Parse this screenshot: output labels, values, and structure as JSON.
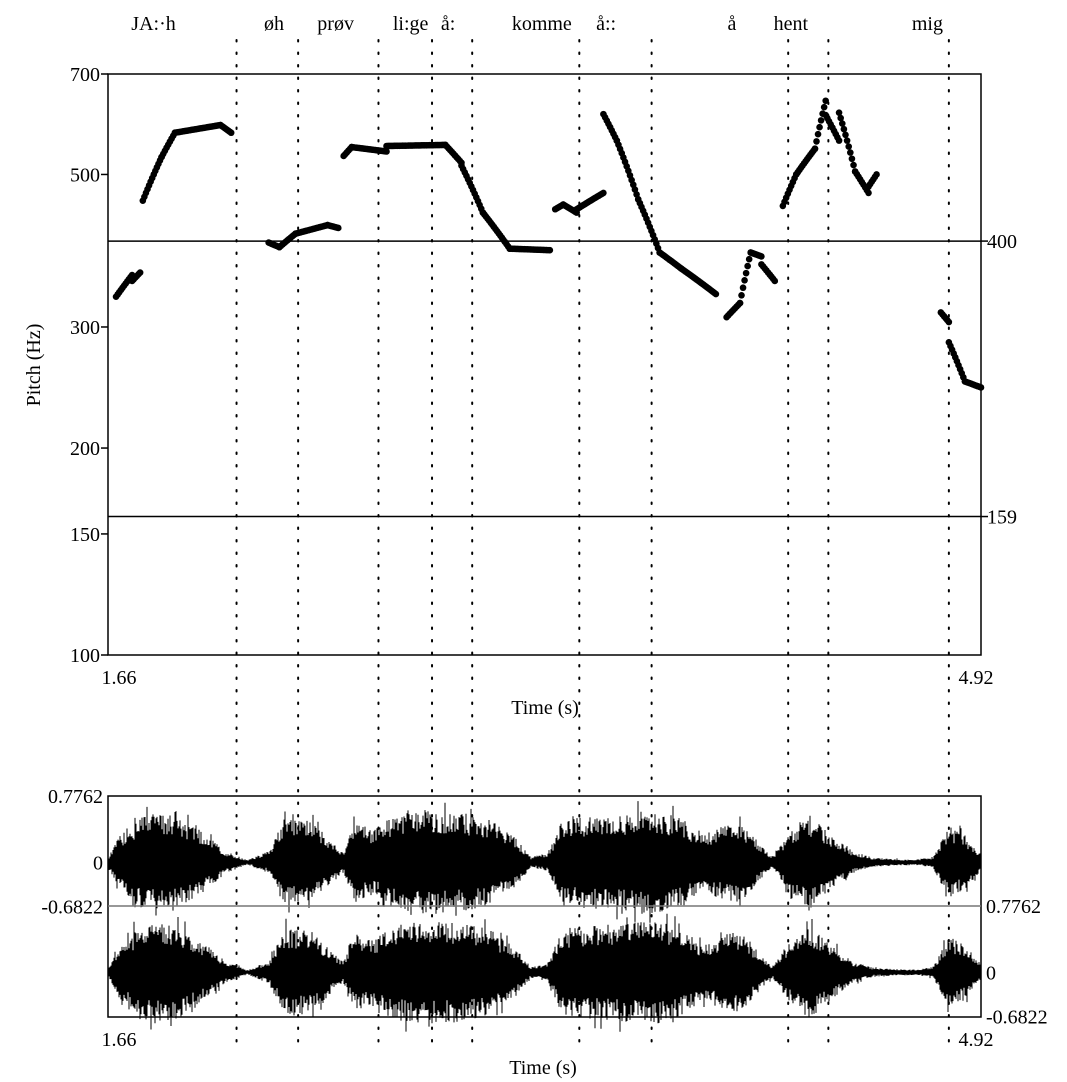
{
  "chart_data": {
    "type": "scatter",
    "words": [
      {
        "label": "JA:·h",
        "t": 1.83
      },
      {
        "label": "øh",
        "t": 2.28
      },
      {
        "label": "prøv",
        "t": 2.51
      },
      {
        "label": "li:ge",
        "t": 2.79
      },
      {
        "label": "å:",
        "t": 2.93
      },
      {
        "label": "komme",
        "t": 3.28
      },
      {
        "label": "å::",
        "t": 3.52
      },
      {
        "label": "å",
        "t": 3.99
      },
      {
        "label": "hent",
        "t": 4.21
      },
      {
        "label": "mig",
        "t": 4.72
      }
    ],
    "boundaries": [
      2.14,
      2.37,
      2.67,
      2.87,
      3.02,
      3.42,
      3.69,
      4.2,
      4.35,
      4.8
    ],
    "pitch": {
      "ylabel": "Pitch (Hz)",
      "xlabel": "Time (s)",
      "xlim": [
        1.66,
        4.92
      ],
      "xtick_labels": [
        "1.66",
        "4.92"
      ],
      "ylim": [
        100,
        700
      ],
      "yscale": "log",
      "yticks": [
        100,
        150,
        200,
        300,
        500,
        700
      ],
      "ytick_labels": [
        "100",
        "150",
        "200",
        "300",
        "500",
        "700"
      ],
      "reference_lines": [
        {
          "value": 400,
          "label": "400"
        },
        {
          "value": 159,
          "label": "159"
        }
      ],
      "segments": [
        {
          "t": [
            1.69,
            1.75
          ],
          "hz": [
            332,
            357
          ]
        },
        {
          "t": [
            1.75,
            1.78
          ],
          "hz": [
            350,
            360
          ]
        },
        {
          "t": [
            1.79,
            1.86
          ],
          "hz": [
            458,
            530
          ]
        },
        {
          "t": [
            1.86,
            1.91
          ],
          "hz": [
            530,
            575
          ]
        },
        {
          "t": [
            1.91,
            2.08
          ],
          "hz": [
            575,
            590
          ]
        },
        {
          "t": [
            2.08,
            2.12
          ],
          "hz": [
            590,
            575
          ]
        },
        {
          "t": [
            2.26,
            2.3
          ],
          "hz": [
            398,
            392
          ]
        },
        {
          "t": [
            2.3,
            2.36
          ],
          "hz": [
            392,
            410
          ]
        },
        {
          "t": [
            2.36,
            2.48
          ],
          "hz": [
            410,
            422
          ]
        },
        {
          "t": [
            2.48,
            2.52
          ],
          "hz": [
            422,
            418
          ]
        },
        {
          "t": [
            2.54,
            2.57
          ],
          "hz": [
            532,
            548
          ]
        },
        {
          "t": [
            2.57,
            2.7
          ],
          "hz": [
            548,
            540
          ]
        },
        {
          "t": [
            2.7,
            2.92
          ],
          "hz": [
            550,
            552
          ]
        },
        {
          "t": [
            2.92,
            2.98
          ],
          "hz": [
            552,
            520
          ]
        },
        {
          "t": [
            2.98,
            3.06
          ],
          "hz": [
            515,
            440
          ]
        },
        {
          "t": [
            3.06,
            3.16
          ],
          "hz": [
            440,
            390
          ]
        },
        {
          "t": [
            3.16,
            3.31
          ],
          "hz": [
            390,
            388
          ]
        },
        {
          "t": [
            3.33,
            3.36
          ],
          "hz": [
            445,
            452
          ]
        },
        {
          "t": [
            3.36,
            3.41
          ],
          "hz": [
            452,
            440
          ]
        },
        {
          "t": [
            3.41,
            3.51
          ],
          "hz": [
            445,
            470
          ]
        },
        {
          "t": [
            3.51,
            3.56
          ],
          "hz": [
            612,
            560
          ]
        },
        {
          "t": [
            3.56,
            3.64
          ],
          "hz": [
            560,
            460
          ]
        },
        {
          "t": [
            3.64,
            3.72
          ],
          "hz": [
            460,
            385
          ]
        },
        {
          "t": [
            3.72,
            3.8
          ],
          "hz": [
            385,
            365
          ]
        },
        {
          "t": [
            3.8,
            3.93
          ],
          "hz": [
            365,
            335
          ]
        },
        {
          "t": [
            3.97,
            4.02
          ],
          "hz": [
            310,
            325
          ]
        },
        {
          "t": [
            4.02,
            4.06
          ],
          "hz": [
            325,
            385
          ]
        },
        {
          "t": [
            4.06,
            4.1
          ],
          "hz": [
            385,
            380
          ]
        },
        {
          "t": [
            4.1,
            4.15
          ],
          "hz": [
            370,
            350
          ]
        },
        {
          "t": [
            4.18,
            4.23
          ],
          "hz": [
            450,
            500
          ]
        },
        {
          "t": [
            4.23,
            4.3
          ],
          "hz": [
            500,
            545
          ]
        },
        {
          "t": [
            4.3,
            4.34
          ],
          "hz": [
            545,
            640
          ]
        },
        {
          "t": [
            4.34,
            4.39
          ],
          "hz": [
            610,
            560
          ]
        },
        {
          "t": [
            4.39,
            4.45
          ],
          "hz": [
            615,
            505
          ]
        },
        {
          "t": [
            4.45,
            4.5
          ],
          "hz": [
            505,
            470
          ]
        },
        {
          "t": [
            4.5,
            4.53
          ],
          "hz": [
            480,
            500
          ]
        },
        {
          "t": [
            4.77,
            4.8
          ],
          "hz": [
            315,
            305
          ]
        },
        {
          "t": [
            4.8,
            4.86
          ],
          "hz": [
            285,
            250
          ]
        },
        {
          "t": [
            4.86,
            4.92
          ],
          "hz": [
            250,
            245
          ]
        }
      ]
    },
    "waveform": {
      "xlabel": "Time (s)",
      "xtick_labels": [
        "1.66",
        "4.92"
      ],
      "channels": [
        {
          "ymax": "0.7762",
          "zero": "0",
          "ymin": "-0.6822",
          "label_side": "left"
        },
        {
          "ymax": "0.7762",
          "zero": "0",
          "ymin": "-0.6822",
          "label_side": "right"
        }
      ],
      "envelope": [
        {
          "t": 1.66,
          "a": 0.08
        },
        {
          "t": 1.7,
          "a": 0.45
        },
        {
          "t": 1.78,
          "a": 0.85
        },
        {
          "t": 1.9,
          "a": 0.9
        },
        {
          "t": 2.0,
          "a": 0.6
        },
        {
          "t": 2.1,
          "a": 0.2
        },
        {
          "t": 2.18,
          "a": 0.04
        },
        {
          "t": 2.26,
          "a": 0.2
        },
        {
          "t": 2.32,
          "a": 0.8
        },
        {
          "t": 2.42,
          "a": 0.75
        },
        {
          "t": 2.5,
          "a": 0.35
        },
        {
          "t": 2.54,
          "a": 0.2
        },
        {
          "t": 2.58,
          "a": 0.7
        },
        {
          "t": 2.66,
          "a": 0.6
        },
        {
          "t": 2.72,
          "a": 0.85
        },
        {
          "t": 2.84,
          "a": 0.95
        },
        {
          "t": 2.96,
          "a": 0.9
        },
        {
          "t": 3.08,
          "a": 0.8
        },
        {
          "t": 3.18,
          "a": 0.45
        },
        {
          "t": 3.24,
          "a": 0.1
        },
        {
          "t": 3.3,
          "a": 0.15
        },
        {
          "t": 3.36,
          "a": 0.8
        },
        {
          "t": 3.48,
          "a": 0.85
        },
        {
          "t": 3.6,
          "a": 0.9
        },
        {
          "t": 3.7,
          "a": 0.95
        },
        {
          "t": 3.8,
          "a": 0.8
        },
        {
          "t": 3.88,
          "a": 0.5
        },
        {
          "t": 3.94,
          "a": 0.65
        },
        {
          "t": 4.02,
          "a": 0.75
        },
        {
          "t": 4.1,
          "a": 0.3
        },
        {
          "t": 4.14,
          "a": 0.1
        },
        {
          "t": 4.2,
          "a": 0.5
        },
        {
          "t": 4.28,
          "a": 0.85
        },
        {
          "t": 4.36,
          "a": 0.5
        },
        {
          "t": 4.44,
          "a": 0.2
        },
        {
          "t": 4.52,
          "a": 0.08
        },
        {
          "t": 4.6,
          "a": 0.06
        },
        {
          "t": 4.68,
          "a": 0.05
        },
        {
          "t": 4.74,
          "a": 0.1
        },
        {
          "t": 4.8,
          "a": 0.65
        },
        {
          "t": 4.86,
          "a": 0.5
        },
        {
          "t": 4.92,
          "a": 0.15
        }
      ]
    }
  }
}
